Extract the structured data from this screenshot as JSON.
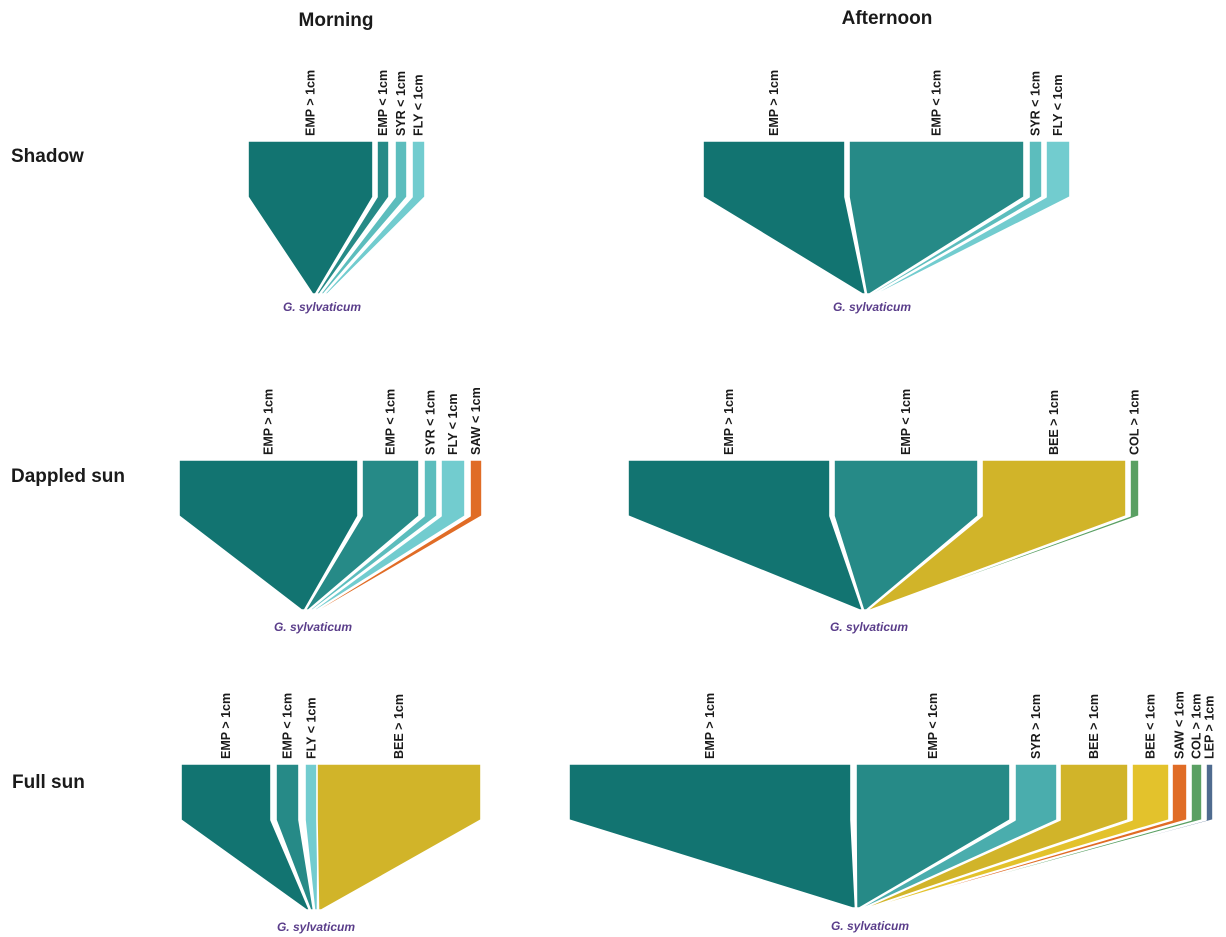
{
  "columns": {
    "morning": "Morning",
    "afternoon": "Afternoon"
  },
  "rows": {
    "shadow": "Shadow",
    "dappled": "Dappled sun",
    "full": "Full sun"
  },
  "colors": {
    "EMP_big": "#127471",
    "EMP_small": "#268a87",
    "SYR_small": "#5cbdbd",
    "FLY_small": "#72cccf",
    "SYR_big": "#4aadad",
    "BEE_big": "#d1b429",
    "BEE_small": "#e3c22c",
    "SAW_small": "#e06c26",
    "COL_big": "#5aa063",
    "LEP_big": "#4f6b8f",
    "plant_label": "#5a3d8a"
  },
  "panels": [
    {
      "id": "shadow-morning",
      "plant": "G. sylvaticum",
      "groups": [
        {
          "label": "EMP > 1cm",
          "key": "EMP_big"
        },
        {
          "label": "EMP < 1cm",
          "key": "EMP_small"
        },
        {
          "label": "SYR < 1cm",
          "key": "SYR_small"
        },
        {
          "label": "FLY < 1cm",
          "key": "FLY_small"
        }
      ]
    },
    {
      "id": "shadow-afternoon",
      "plant": "G. sylvaticum",
      "groups": [
        {
          "label": "EMP > 1cm",
          "key": "EMP_big"
        },
        {
          "label": "EMP < 1cm",
          "key": "EMP_small"
        },
        {
          "label": "SYR < 1cm",
          "key": "SYR_small"
        },
        {
          "label": "FLY < 1cm",
          "key": "FLY_small"
        }
      ]
    },
    {
      "id": "dappled-morning",
      "plant": "G. sylvaticum",
      "groups": [
        {
          "label": "EMP > 1cm",
          "key": "EMP_big"
        },
        {
          "label": "EMP < 1cm",
          "key": "EMP_small"
        },
        {
          "label": "SYR < 1cm",
          "key": "SYR_small"
        },
        {
          "label": "FLY < 1cm",
          "key": "FLY_small"
        },
        {
          "label": "SAW < 1cm",
          "key": "SAW_small"
        }
      ]
    },
    {
      "id": "dappled-afternoon",
      "plant": "G. sylvaticum",
      "groups": [
        {
          "label": "EMP > 1cm",
          "key": "EMP_big"
        },
        {
          "label": "EMP < 1cm",
          "key": "EMP_small"
        },
        {
          "label": "BEE > 1cm",
          "key": "BEE_big"
        },
        {
          "label": "COL > 1cm",
          "key": "COL_big"
        }
      ]
    },
    {
      "id": "full-morning",
      "plant": "G. sylvaticum",
      "groups": [
        {
          "label": "EMP > 1cm",
          "key": "EMP_big"
        },
        {
          "label": "EMP < 1cm",
          "key": "EMP_small"
        },
        {
          "label": "FLY < 1cm",
          "key": "FLY_small"
        },
        {
          "label": "BEE > 1cm",
          "key": "BEE_big"
        }
      ]
    },
    {
      "id": "full-afternoon",
      "plant": "G. sylvaticum",
      "groups": [
        {
          "label": "EMP > 1cm",
          "key": "EMP_big"
        },
        {
          "label": "EMP < 1cm",
          "key": "EMP_small"
        },
        {
          "label": "SYR > 1cm",
          "key": "SYR_big"
        },
        {
          "label": "BEE > 1cm",
          "key": "BEE_big"
        },
        {
          "label": "BEE < 1cm",
          "key": "BEE_small"
        },
        {
          "label": "SAW < 1cm",
          "key": "SAW_small"
        },
        {
          "label": "COL > 1cm",
          "key": "COL_big"
        },
        {
          "label": "LEP > 1cm",
          "key": "LEP_big"
        }
      ]
    }
  ]
}
